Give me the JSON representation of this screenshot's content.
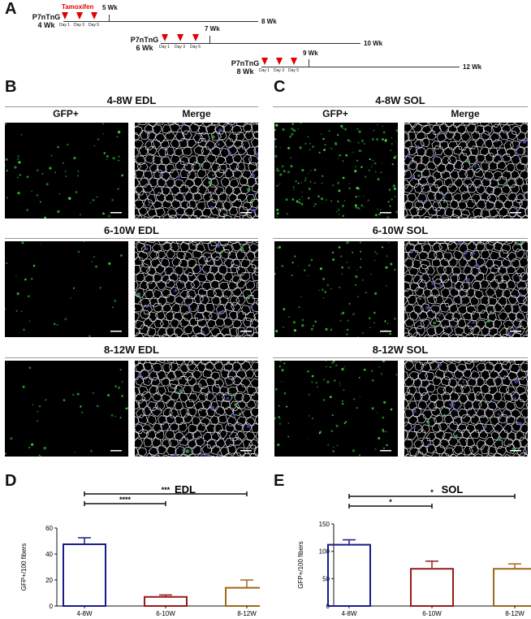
{
  "panels": {
    "A": "A",
    "B": "B",
    "C": "C",
    "D": "D",
    "E": "E"
  },
  "timeline": {
    "tamoxifen": "Tamoxifen",
    "rows": [
      {
        "label1": "P7nTnG",
        "label2": "4 Wk",
        "days": [
          "Day 1",
          "Day 3",
          "Day 5"
        ],
        "mid": "5 Wk",
        "end": "8 Wk"
      },
      {
        "label1": "P7nTnG",
        "label2": "6 Wk",
        "days": [
          "Day 1",
          "Day 3",
          "Day 5"
        ],
        "mid": "7 Wk",
        "end": "10 Wk"
      },
      {
        "label1": "P7nTnG",
        "label2": "8 Wk",
        "days": [
          "Day 1",
          "Day 3",
          "Day 5"
        ],
        "mid": "9 Wk",
        "end": "12 Wk"
      }
    ]
  },
  "histology": {
    "edl": {
      "title_1": "4-8W EDL",
      "title_2": "6-10W EDL",
      "title_3": "8-12W EDL"
    },
    "sol": {
      "title_1": "4-8W SOL",
      "title_2": "6-10W SOL",
      "title_3": "8-12W SOL"
    },
    "col_gfp": "GFP+",
    "col_merge": "Merge"
  },
  "colors": {
    "bar1": "#1a1a8c",
    "bar2": "#9a1a1a",
    "bar3": "#a0681a",
    "arrow": "#e00000"
  },
  "chart_data": [
    {
      "type": "bar",
      "title": "EDL",
      "ylabel": "GFP+/100 fibers",
      "categories": [
        "4-8W",
        "6-10W",
        "8-12W"
      ],
      "values": [
        47.5,
        7,
        14
      ],
      "errors": [
        5,
        1.5,
        6
      ],
      "ylim": [
        0,
        60
      ],
      "yticks": [
        "0",
        "20",
        "40",
        "60"
      ],
      "significance": [
        {
          "from": "4-8W",
          "to": "6-10W",
          "label": "****"
        },
        {
          "from": "4-8W",
          "to": "8-12W",
          "label": "***"
        }
      ]
    },
    {
      "type": "bar",
      "title": "SOL",
      "ylabel": "GFP+/100 fibers",
      "categories": [
        "4-8W",
        "6-10W",
        "8-12W"
      ],
      "values": [
        112,
        68,
        68
      ],
      "errors": [
        9,
        14,
        9
      ],
      "ylim": [
        0,
        150
      ],
      "yticks": [
        "0",
        "50",
        "100",
        "150"
      ],
      "significance": [
        {
          "from": "4-8W",
          "to": "6-10W",
          "label": "*"
        },
        {
          "from": "4-8W",
          "to": "8-12W",
          "label": "*"
        }
      ]
    }
  ]
}
